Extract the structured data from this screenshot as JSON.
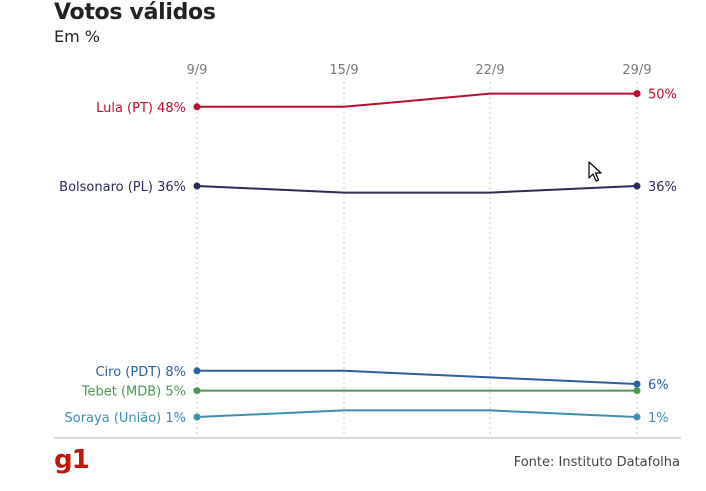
{
  "header": {
    "title": "Votos válidos",
    "subtitle": "Em %"
  },
  "footer": {
    "logo": "g1",
    "source": "Fonte: Instituto Datafolha"
  },
  "chart_data": {
    "type": "line",
    "title": "Votos válidos",
    "subtitle": "Em %",
    "x": [
      "9/9",
      "15/9",
      "22/9",
      "29/9"
    ],
    "grid": true,
    "series": [
      {
        "name": "Lula (PT)",
        "start_label": "Lula (PT) 48%",
        "end_label": "50%",
        "color": "#b8102e",
        "values": [
          48,
          48,
          50,
          50
        ]
      },
      {
        "name": "Bolsonaro (PL)",
        "start_label": "Bolsonaro (PL) 36%",
        "end_label": "36%",
        "color": "#2b2b5e",
        "values": [
          36,
          35,
          35,
          36
        ]
      },
      {
        "name": "Ciro (PDT)",
        "start_label": "Ciro (PDT) 8%",
        "end_label": "6%",
        "color": "#2a5fa0",
        "values": [
          8,
          8,
          7,
          6
        ]
      },
      {
        "name": "Tebet (MDB)",
        "start_label": "Tebet (MDB) 5%",
        "end_label": "",
        "color": "#4a9a52",
        "values": [
          5,
          5,
          5,
          5
        ]
      },
      {
        "name": "Soraya (União)",
        "start_label": "Soraya (União) 1%",
        "end_label": "1%",
        "color": "#3b8fb0",
        "values": [
          1,
          2,
          2,
          1
        ]
      }
    ]
  }
}
